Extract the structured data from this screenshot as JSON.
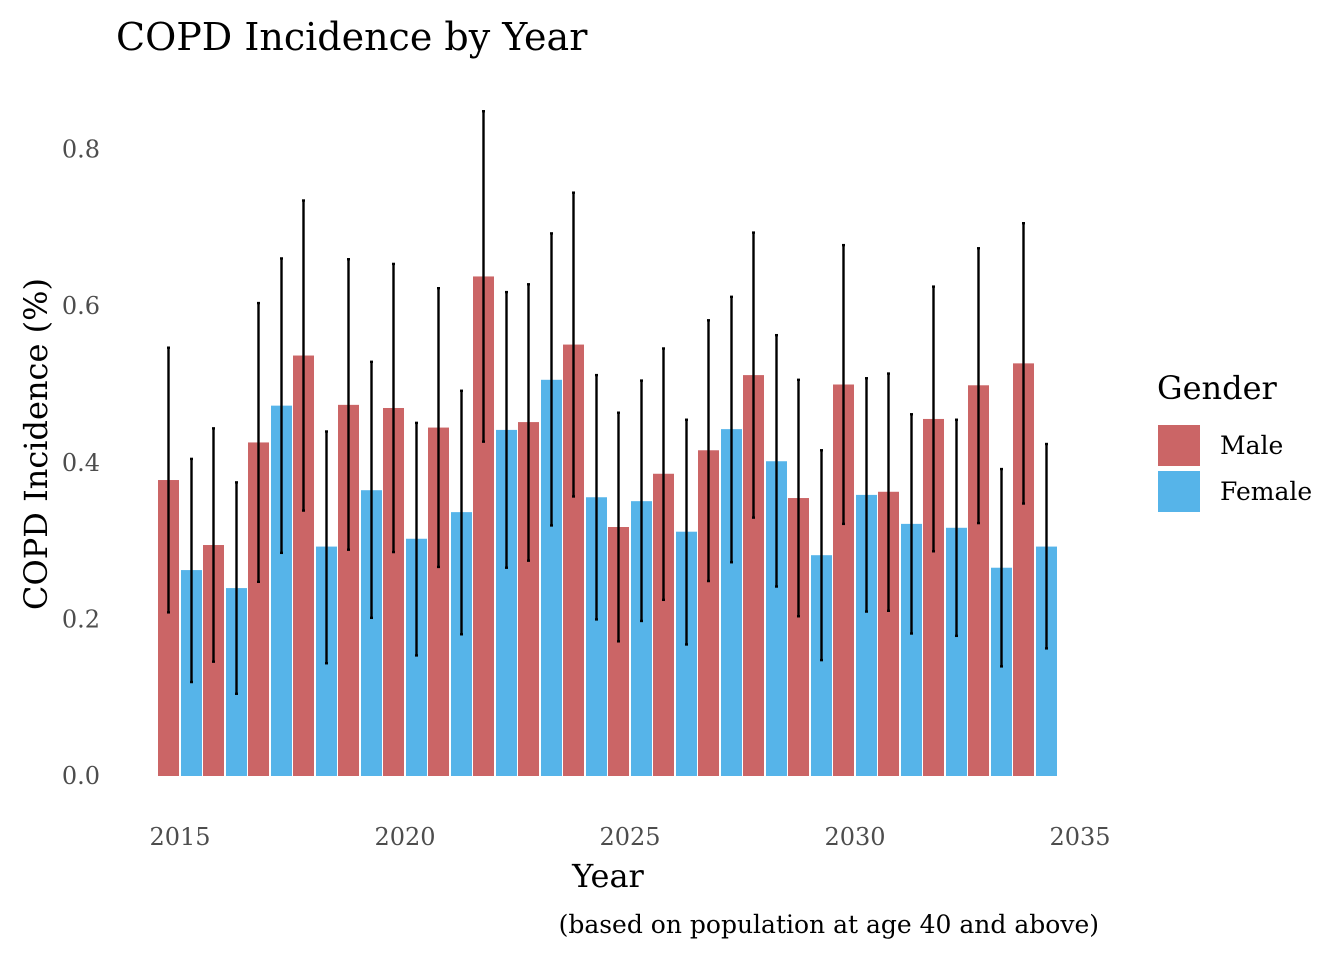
{
  "chart_data": {
    "type": "bar",
    "title": "COPD Incidence by Year",
    "xlabel": "Year",
    "ylabel": "COPD Incidence (%)",
    "caption": "(based on population at age 40 and above)",
    "xlim": [
      2014.5,
      2035
    ],
    "ylim": [
      0,
      0.87
    ],
    "x_ticks": [
      2015,
      2020,
      2025,
      2030,
      2035
    ],
    "y_ticks": [
      0.0,
      0.2,
      0.4,
      0.6,
      0.8
    ],
    "y_tick_labels": [
      "0.0",
      "0.2",
      "0.4",
      "0.6",
      "0.8"
    ],
    "legend": {
      "title": "Gender",
      "position": "right"
    },
    "x": [
      2015,
      2016,
      2017,
      2018,
      2019,
      2020,
      2021,
      2022,
      2023,
      2024,
      2025,
      2026,
      2027,
      2028,
      2029,
      2030,
      2031,
      2032,
      2033,
      2034
    ],
    "series": [
      {
        "name": "Male",
        "color": "#CB6566",
        "values": [
          0.378,
          0.295,
          0.426,
          0.537,
          0.474,
          0.47,
          0.445,
          0.638,
          0.452,
          0.551,
          0.318,
          0.386,
          0.416,
          0.512,
          0.355,
          0.5,
          0.363,
          0.456,
          0.499,
          0.527
        ],
        "err_low": [
          0.209,
          0.146,
          0.248,
          0.339,
          0.289,
          0.286,
          0.267,
          0.427,
          0.275,
          0.357,
          0.172,
          0.225,
          0.249,
          0.33,
          0.204,
          0.322,
          0.211,
          0.287,
          0.323,
          0.348
        ],
        "err_high": [
          0.547,
          0.444,
          0.604,
          0.735,
          0.66,
          0.654,
          0.623,
          0.849,
          0.628,
          0.745,
          0.464,
          0.546,
          0.582,
          0.694,
          0.506,
          0.678,
          0.514,
          0.625,
          0.674,
          0.706
        ]
      },
      {
        "name": "Female",
        "color": "#56B4E9",
        "values": [
          0.263,
          0.24,
          0.473,
          0.293,
          0.365,
          0.303,
          0.337,
          0.442,
          0.506,
          0.356,
          0.351,
          0.312,
          0.443,
          0.402,
          0.282,
          0.359,
          0.322,
          0.317,
          0.266,
          0.293
        ],
        "err_low": [
          0.12,
          0.105,
          0.285,
          0.144,
          0.202,
          0.154,
          0.181,
          0.266,
          0.32,
          0.2,
          0.198,
          0.168,
          0.273,
          0.242,
          0.148,
          0.21,
          0.182,
          0.179,
          0.14,
          0.163
        ],
        "err_high": [
          0.405,
          0.375,
          0.661,
          0.44,
          0.529,
          0.451,
          0.492,
          0.618,
          0.693,
          0.512,
          0.505,
          0.455,
          0.612,
          0.563,
          0.416,
          0.508,
          0.462,
          0.455,
          0.392,
          0.424
        ]
      }
    ]
  }
}
